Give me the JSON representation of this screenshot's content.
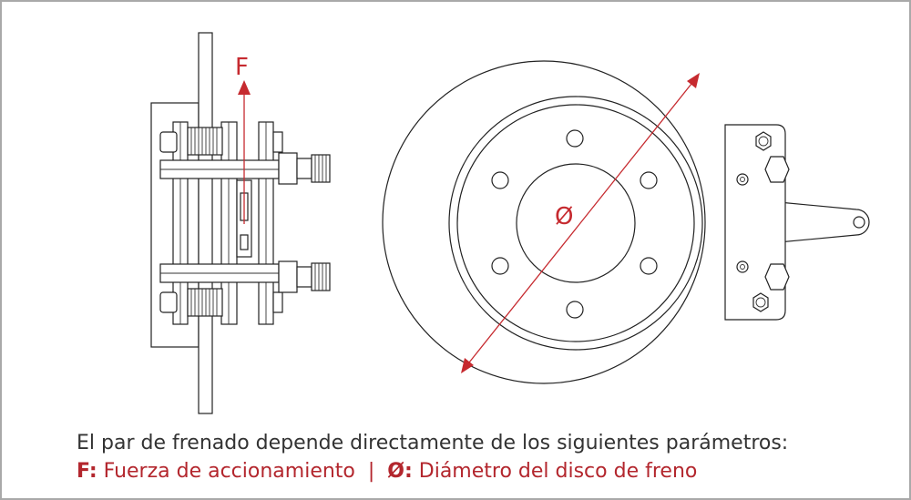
{
  "labels": {
    "force_symbol": "F",
    "diameter_symbol": "Ø"
  },
  "caption": {
    "line1": "El par de frenado depende directamente de los siguientes parámetros:",
    "force_key": "F:",
    "force_text": " Fuerza de accionamiento",
    "separator": "  |  ",
    "diameter_key": "Ø:",
    "diameter_text": " Diámetro del disco de freno"
  },
  "colors": {
    "accent": "#c62a2f",
    "frame": "#a9a9a9",
    "text": "#333333"
  }
}
